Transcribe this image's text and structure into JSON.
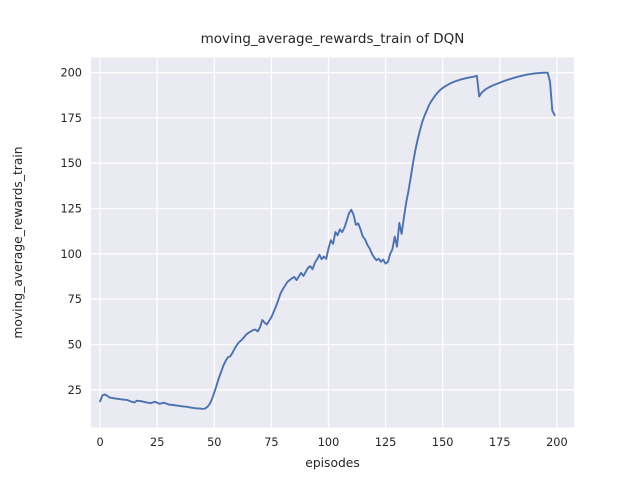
{
  "chart_data": {
    "type": "line",
    "title": "moving_average_rewards_train of DQN",
    "xlabel": "episodes",
    "ylabel": "moving_average_rewards_train",
    "xlim": [
      -4,
      207.5
    ],
    "ylim": [
      4.2,
      208.3
    ],
    "xticks": [
      0,
      25,
      50,
      75,
      100,
      125,
      150,
      175,
      200
    ],
    "yticks": [
      25,
      50,
      75,
      100,
      125,
      150,
      175,
      200
    ],
    "grid": true,
    "legend": "none",
    "style": "seaborn-darkgrid",
    "colors": {
      "figure_bg": "#ffffff",
      "axes_bg": "#eaeaf2",
      "grid": "#ffffff",
      "line": "#4c72b0",
      "text": "#262626"
    },
    "series": [
      {
        "name": "moving_average_rewards_train",
        "points": [
          [
            0,
            18.6
          ],
          [
            1,
            21.9
          ],
          [
            2,
            22.4
          ],
          [
            3,
            21.8
          ],
          [
            4,
            20.8
          ],
          [
            6,
            20.3
          ],
          [
            8,
            20.0
          ],
          [
            10,
            19.6
          ],
          [
            12,
            19.3
          ],
          [
            14,
            18.3
          ],
          [
            15,
            18.0
          ],
          [
            16,
            19.0
          ],
          [
            18,
            18.7
          ],
          [
            20,
            18.1
          ],
          [
            22,
            17.6
          ],
          [
            24,
            18.4
          ],
          [
            26,
            17.3
          ],
          [
            28,
            17.9
          ],
          [
            30,
            16.9
          ],
          [
            32,
            16.6
          ],
          [
            34,
            16.2
          ],
          [
            36,
            15.9
          ],
          [
            38,
            15.6
          ],
          [
            40,
            15.1
          ],
          [
            42,
            14.8
          ],
          [
            44,
            14.6
          ],
          [
            45,
            14.4
          ],
          [
            46,
            14.7
          ],
          [
            47,
            15.6
          ],
          [
            48,
            17.3
          ],
          [
            49,
            19.8
          ],
          [
            50,
            23.5
          ],
          [
            51,
            27.5
          ],
          [
            52,
            31.5
          ],
          [
            53,
            35.0
          ],
          [
            54,
            38.5
          ],
          [
            55,
            41.0
          ],
          [
            56,
            43.0
          ],
          [
            57,
            43.5
          ],
          [
            58,
            45.5
          ],
          [
            59,
            48.0
          ],
          [
            60,
            50.0
          ],
          [
            61,
            51.5
          ],
          [
            62,
            52.5
          ],
          [
            63,
            54.0
          ],
          [
            64,
            55.5
          ],
          [
            65,
            56.5
          ],
          [
            66,
            57.2
          ],
          [
            67,
            58.0
          ],
          [
            68,
            58.2
          ],
          [
            69,
            57.2
          ],
          [
            70,
            59.5
          ],
          [
            71,
            63.5
          ],
          [
            72,
            62.0
          ],
          [
            73,
            61.0
          ],
          [
            74,
            63.0
          ],
          [
            75,
            65.0
          ],
          [
            76,
            68.0
          ],
          [
            77,
            71.0
          ],
          [
            78,
            74.5
          ],
          [
            79,
            78.0
          ],
          [
            80,
            80.5
          ],
          [
            81,
            82.5
          ],
          [
            82,
            84.5
          ],
          [
            83,
            85.5
          ],
          [
            84,
            86.5
          ],
          [
            85,
            87.3
          ],
          [
            86,
            85.5
          ],
          [
            87,
            87.5
          ],
          [
            88,
            89.5
          ],
          [
            89,
            87.8
          ],
          [
            90,
            90.0
          ],
          [
            91,
            92.3
          ],
          [
            92,
            93.2
          ],
          [
            93,
            91.5
          ],
          [
            94,
            95.0
          ],
          [
            95,
            97.0
          ],
          [
            96,
            99.5
          ],
          [
            97,
            97.0
          ],
          [
            98,
            98.5
          ],
          [
            99,
            97.2
          ],
          [
            100,
            103.0
          ],
          [
            101,
            107.5
          ],
          [
            102,
            105.5
          ],
          [
            103,
            112.0
          ],
          [
            104,
            110.3
          ],
          [
            105,
            113.5
          ],
          [
            106,
            112.0
          ],
          [
            107,
            114.5
          ],
          [
            108,
            118.5
          ],
          [
            109,
            122.5
          ],
          [
            110,
            124.3
          ],
          [
            111,
            121.5
          ],
          [
            112,
            116.0
          ],
          [
            113,
            116.8
          ],
          [
            114,
            113.5
          ],
          [
            115,
            109.5
          ],
          [
            116,
            108.0
          ],
          [
            117,
            105.0
          ],
          [
            118,
            103.0
          ],
          [
            119,
            100.0
          ],
          [
            120,
            98.0
          ],
          [
            121,
            96.5
          ],
          [
            122,
            97.3
          ],
          [
            123,
            95.6
          ],
          [
            124,
            96.8
          ],
          [
            125,
            94.6
          ],
          [
            126,
            95.5
          ],
          [
            127,
            100.0
          ],
          [
            128,
            102.5
          ],
          [
            129,
            109.5
          ],
          [
            130,
            104.0
          ],
          [
            131,
            117.0
          ],
          [
            132,
            111.0
          ],
          [
            133,
            120.0
          ],
          [
            134,
            128.0
          ],
          [
            135,
            134.5
          ],
          [
            136,
            142.0
          ],
          [
            137,
            150.0
          ],
          [
            138,
            157.0
          ],
          [
            139,
            163.0
          ],
          [
            140,
            168.0
          ],
          [
            141,
            172.5
          ],
          [
            142,
            176.0
          ],
          [
            143,
            179.0
          ],
          [
            144,
            182.0
          ],
          [
            145,
            184.2
          ],
          [
            146,
            186.0
          ],
          [
            147,
            187.8
          ],
          [
            148,
            189.2
          ],
          [
            149,
            190.5
          ],
          [
            150,
            191.5
          ],
          [
            151,
            192.4
          ],
          [
            152,
            193.1
          ],
          [
            153,
            193.8
          ],
          [
            154,
            194.4
          ],
          [
            155,
            194.9
          ],
          [
            156,
            195.4
          ],
          [
            157,
            195.8
          ],
          [
            158,
            196.2
          ],
          [
            159,
            196.5
          ],
          [
            160,
            196.8
          ],
          [
            161,
            197.1
          ],
          [
            162,
            197.4
          ],
          [
            163,
            197.6
          ],
          [
            164,
            197.9
          ],
          [
            165,
            198.2
          ],
          [
            166,
            186.8
          ],
          [
            167,
            188.8
          ],
          [
            168,
            190.0
          ],
          [
            169,
            190.9
          ],
          [
            170,
            191.7
          ],
          [
            171,
            192.3
          ],
          [
            172,
            192.9
          ],
          [
            173,
            193.4
          ],
          [
            174,
            193.9
          ],
          [
            175,
            194.4
          ],
          [
            176,
            194.9
          ],
          [
            177,
            195.4
          ],
          [
            178,
            195.8
          ],
          [
            179,
            196.2
          ],
          [
            180,
            196.6
          ],
          [
            181,
            197.0
          ],
          [
            182,
            197.4
          ],
          [
            183,
            197.7
          ],
          [
            184,
            198.0
          ],
          [
            185,
            198.3
          ],
          [
            186,
            198.6
          ],
          [
            187,
            198.9
          ],
          [
            188,
            199.1
          ],
          [
            189,
            199.3
          ],
          [
            190,
            199.5
          ],
          [
            191,
            199.6
          ],
          [
            192,
            199.7
          ],
          [
            193,
            199.8
          ],
          [
            194,
            199.9
          ],
          [
            195,
            199.9
          ],
          [
            196,
            199.9
          ],
          [
            197,
            195.0
          ],
          [
            198,
            179.0
          ],
          [
            199,
            176.5
          ]
        ]
      }
    ]
  }
}
